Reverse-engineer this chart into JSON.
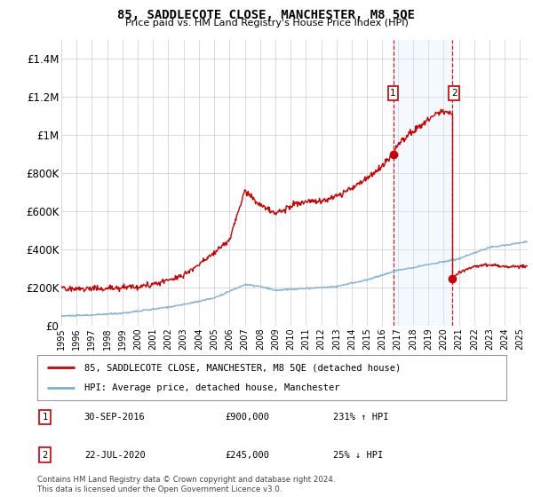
{
  "title": "85, SADDLECOTE CLOSE, MANCHESTER, M8 5QE",
  "subtitle": "Price paid vs. HM Land Registry's House Price Index (HPI)",
  "ylim": [
    0,
    1500000
  ],
  "yticks": [
    0,
    200000,
    400000,
    600000,
    800000,
    1000000,
    1200000,
    1400000
  ],
  "ytick_labels": [
    "£0",
    "£200K",
    "£400K",
    "£600K",
    "£800K",
    "£1M",
    "£1.2M",
    "£1.4M"
  ],
  "hpi_color": "#7bafd4",
  "price_color": "#cc0000",
  "shaded_color": "#ddeeff",
  "grid_color": "#cccccc",
  "legend_label_price": "85, SADDLECOTE CLOSE, MANCHESTER, M8 5QE (detached house)",
  "legend_label_hpi": "HPI: Average price, detached house, Manchester",
  "annotation1_label": "1",
  "annotation1_date": "30-SEP-2016",
  "annotation1_price": "£900,000",
  "annotation1_hpi": "231% ↑ HPI",
  "annotation2_label": "2",
  "annotation2_date": "22-JUL-2020",
  "annotation2_price": "£245,000",
  "annotation2_hpi": "25% ↓ HPI",
  "footer": "Contains HM Land Registry data © Crown copyright and database right 2024.\nThis data is licensed under the Open Government Licence v3.0.",
  "transaction1_x": 2016.75,
  "transaction1_y": 900000,
  "transaction2_x": 2020.55,
  "transaction2_y": 245000,
  "xmin": 1995,
  "xmax": 2025.5
}
